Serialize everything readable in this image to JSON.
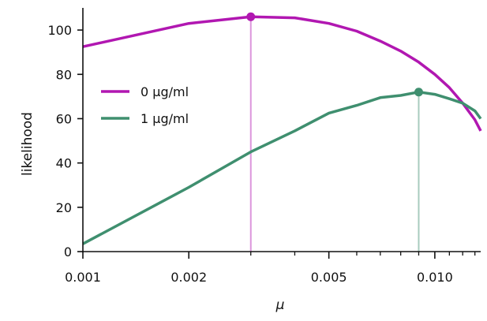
{
  "chart_data": {
    "type": "line",
    "title": "",
    "xlabel": "μ",
    "ylabel": "likelihood",
    "x_scale": "log",
    "xlim": [
      0.001,
      0.0135
    ],
    "ylim": [
      0,
      110
    ],
    "grid": false,
    "legend_position": "upper-left",
    "x_ticks": [
      {
        "value": 0.001,
        "label": "0.001"
      },
      {
        "value": 0.002,
        "label": "0.002"
      },
      {
        "value": 0.005,
        "label": "0.005"
      },
      {
        "value": 0.01,
        "label": "0.010"
      }
    ],
    "x_minor_ticks": [
      0.003,
      0.004,
      0.006,
      0.007,
      0.008,
      0.009,
      0.011,
      0.012,
      0.013
    ],
    "y_ticks": [
      {
        "value": 0,
        "label": "0"
      },
      {
        "value": 20,
        "label": "20"
      },
      {
        "value": 40,
        "label": "40"
      },
      {
        "value": 60,
        "label": "60"
      },
      {
        "value": 80,
        "label": "80"
      },
      {
        "value": 100,
        "label": "100"
      }
    ],
    "series": [
      {
        "name": "0 μg/ml",
        "color": "#b117b1",
        "x": [
          0.001,
          0.002,
          0.003,
          0.004,
          0.005,
          0.006,
          0.007,
          0.008,
          0.009,
          0.01,
          0.011,
          0.012,
          0.013,
          0.0135
        ],
        "y": [
          92.5,
          103,
          106,
          105.5,
          103,
          99.5,
          95,
          90.5,
          85.5,
          80,
          74,
          67,
          59.5,
          54.5
        ],
        "max_point": {
          "x": 0.003,
          "y": 106
        }
      },
      {
        "name": "1 μg/ml",
        "color": "#3f8f6f",
        "x": [
          0.001,
          0.002,
          0.003,
          0.004,
          0.005,
          0.006,
          0.007,
          0.008,
          0.009,
          0.01,
          0.011,
          0.012,
          0.013,
          0.0135
        ],
        "y": [
          3.5,
          29,
          45,
          54.5,
          62.5,
          66,
          69.5,
          70.5,
          72,
          71,
          69,
          67,
          63.5,
          60
        ],
        "max_point": {
          "x": 0.009,
          "y": 72
        }
      }
    ]
  }
}
